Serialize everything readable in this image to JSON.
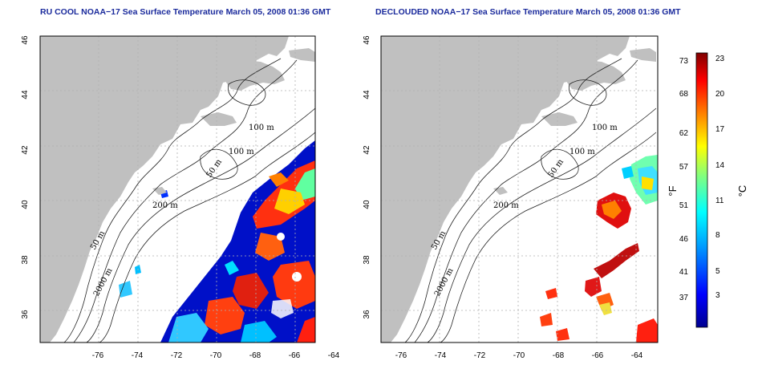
{
  "panels": [
    {
      "id": "left",
      "title": "RU COOL NOAA−17 Sea Surface Temperature March 05, 2008 01:36 GMT",
      "x_ticks": [
        "-76",
        "-74",
        "-72",
        "-70",
        "-68",
        "-66",
        "-64"
      ],
      "y_ticks": [
        "36",
        "38",
        "40",
        "42",
        "44",
        "46"
      ],
      "contour_labels": [
        "100 m",
        "100 m",
        "50 m",
        "200 m",
        "50 m",
        "2000 m"
      ]
    },
    {
      "id": "right",
      "title": "DECLOUDED NOAA−17 Sea Surface Temperature March 05, 2008 01:36 GMT",
      "x_ticks": [
        "-76",
        "-74",
        "-72",
        "-70",
        "-68",
        "-66",
        "-64"
      ],
      "y_ticks": [
        "36",
        "38",
        "40",
        "42",
        "44",
        "46"
      ],
      "contour_labels": [
        "100 m",
        "100 m",
        "50 m",
        "200 m",
        "50 m",
        "2000 m"
      ]
    }
  ],
  "map_extent": {
    "lon": [
      -77,
      -63
    ],
    "lat": [
      35,
      46
    ]
  },
  "colorbar": {
    "fahrenheit_ticks": [
      "73",
      "68",
      "62",
      "57",
      "51",
      "46",
      "41",
      "37"
    ],
    "celsius_ticks": [
      "23",
      "20",
      "17",
      "14",
      "11",
      "8",
      "5",
      "3"
    ],
    "fahrenheit_unit": "°F",
    "celsius_unit": "°C",
    "colors": [
      "#00008f",
      "#0000ff",
      "#00a0ff",
      "#00ffff",
      "#80ff80",
      "#ffff00",
      "#ff8000",
      "#ff0000",
      "#800000"
    ]
  },
  "colors": {
    "land": "#c0c0c0",
    "ocean": "#ffffff",
    "title": "#1a2a9c",
    "grid": "#b0b0b0"
  }
}
